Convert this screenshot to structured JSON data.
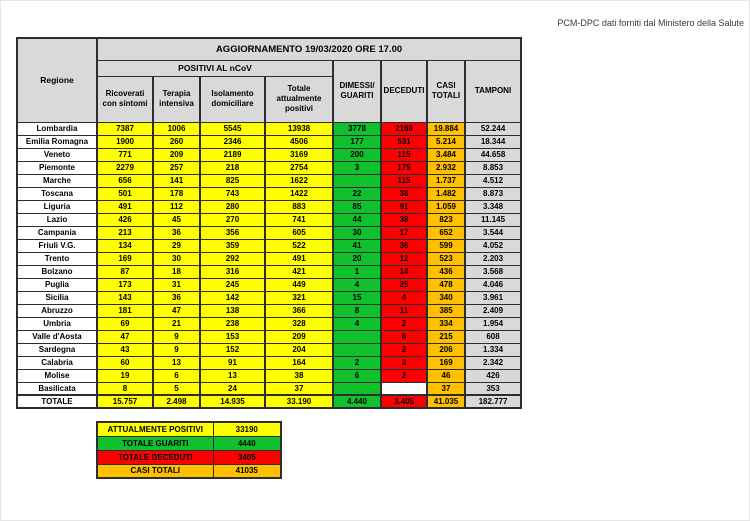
{
  "page": {
    "caption": "PCM-DPC dati forniti dal Ministero della Salute"
  },
  "colors": {
    "yellow": "#FFFF00",
    "green": "#10C02D",
    "red": "#FF0000",
    "orange": "#FFC000",
    "gray": "#D9D9D9",
    "header_gray": "#D9D9D9"
  },
  "table": {
    "title": "AGGIORNAMENTO 19/03/2020 ORE 17.00",
    "group_header": "POSITIVI AL nCoV",
    "columns": {
      "regione": "Regione",
      "ricoverati": "Ricoverati con sintomi",
      "terapia": "Terapia intensiva",
      "isolamento": "Isolamento domiciliare",
      "totale": "Totale attualmente positivi",
      "dimessi": "DIMESSI/ GUARITI",
      "deceduti": "DECEDUTI",
      "casi": "CASI TOTALI",
      "tamponi": "TAMPONI"
    },
    "rows": [
      {
        "regione": "Lombardia",
        "ricoverati": "7387",
        "terapia": "1006",
        "isolamento": "5545",
        "totale": "13938",
        "dimessi": "3778",
        "deceduti": "2168",
        "casi": "19.884",
        "tamponi": "52.244"
      },
      {
        "regione": "Emilia Romagna",
        "ricoverati": "1900",
        "terapia": "260",
        "isolamento": "2346",
        "totale": "4506",
        "dimessi": "177",
        "deceduti": "531",
        "casi": "5.214",
        "tamponi": "18.344"
      },
      {
        "regione": "Veneto",
        "ricoverati": "771",
        "terapia": "209",
        "isolamento": "2189",
        "totale": "3169",
        "dimessi": "200",
        "deceduti": "115",
        "casi": "3.484",
        "tamponi": "44.658"
      },
      {
        "regione": "Piemonte",
        "ricoverati": "2279",
        "terapia": "257",
        "isolamento": "218",
        "totale": "2754",
        "dimessi": "3",
        "deceduti": "175",
        "casi": "2.932",
        "tamponi": "8.853"
      },
      {
        "regione": "Marche",
        "ricoverati": "656",
        "terapia": "141",
        "isolamento": "825",
        "totale": "1622",
        "dimessi": "",
        "deceduti": "115",
        "casi": "1.737",
        "tamponi": "4.512"
      },
      {
        "regione": "Toscana",
        "ricoverati": "501",
        "terapia": "178",
        "isolamento": "743",
        "totale": "1422",
        "dimessi": "22",
        "deceduti": "38",
        "casi": "1.482",
        "tamponi": "8.873"
      },
      {
        "regione": "Liguria",
        "ricoverati": "491",
        "terapia": "112",
        "isolamento": "280",
        "totale": "883",
        "dimessi": "85",
        "deceduti": "91",
        "casi": "1.059",
        "tamponi": "3.348"
      },
      {
        "regione": "Lazio",
        "ricoverati": "426",
        "terapia": "45",
        "isolamento": "270",
        "totale": "741",
        "dimessi": "44",
        "deceduti": "38",
        "casi": "823",
        "tamponi": "11.145"
      },
      {
        "regione": "Campania",
        "ricoverati": "213",
        "terapia": "36",
        "isolamento": "356",
        "totale": "605",
        "dimessi": "30",
        "deceduti": "17",
        "casi": "652",
        "tamponi": "3.544"
      },
      {
        "regione": "Friuli V.G.",
        "ricoverati": "134",
        "terapia": "29",
        "isolamento": "359",
        "totale": "522",
        "dimessi": "41",
        "deceduti": "36",
        "casi": "599",
        "tamponi": "4.052"
      },
      {
        "regione": "Trento",
        "ricoverati": "169",
        "terapia": "30",
        "isolamento": "292",
        "totale": "491",
        "dimessi": "20",
        "deceduti": "12",
        "casi": "523",
        "tamponi": "2.203"
      },
      {
        "regione": "Bolzano",
        "ricoverati": "87",
        "terapia": "18",
        "isolamento": "316",
        "totale": "421",
        "dimessi": "1",
        "deceduti": "14",
        "casi": "436",
        "tamponi": "3.568"
      },
      {
        "regione": "Puglia",
        "ricoverati": "173",
        "terapia": "31",
        "isolamento": "245",
        "totale": "449",
        "dimessi": "4",
        "deceduti": "25",
        "casi": "478",
        "tamponi": "4.046"
      },
      {
        "regione": "Sicilia",
        "ricoverati": "143",
        "terapia": "36",
        "isolamento": "142",
        "totale": "321",
        "dimessi": "15",
        "deceduti": "4",
        "casi": "340",
        "tamponi": "3.961"
      },
      {
        "regione": "Abruzzo",
        "ricoverati": "181",
        "terapia": "47",
        "isolamento": "138",
        "totale": "366",
        "dimessi": "8",
        "deceduti": "11",
        "casi": "385",
        "tamponi": "2.409"
      },
      {
        "regione": "Umbria",
        "ricoverati": "69",
        "terapia": "21",
        "isolamento": "238",
        "totale": "328",
        "dimessi": "4",
        "deceduti": "2",
        "casi": "334",
        "tamponi": "1.954"
      },
      {
        "regione": "Valle d'Aosta",
        "ricoverati": "47",
        "terapia": "9",
        "isolamento": "153",
        "totale": "209",
        "dimessi": "",
        "deceduti": "6",
        "casi": "215",
        "tamponi": "608"
      },
      {
        "regione": "Sardegna",
        "ricoverati": "43",
        "terapia": "9",
        "isolamento": "152",
        "totale": "204",
        "dimessi": "",
        "deceduti": "2",
        "casi": "206",
        "tamponi": "1.334"
      },
      {
        "regione": "Calabria",
        "ricoverati": "60",
        "terapia": "13",
        "isolamento": "91",
        "totale": "164",
        "dimessi": "2",
        "deceduti": "3",
        "casi": "169",
        "tamponi": "2.342"
      },
      {
        "regione": "Molise",
        "ricoverati": "19",
        "terapia": "6",
        "isolamento": "13",
        "totale": "38",
        "dimessi": "6",
        "deceduti": "2",
        "casi": "46",
        "tamponi": "426"
      },
      {
        "regione": "Basilicata",
        "ricoverati": "8",
        "terapia": "5",
        "isolamento": "24",
        "totale": "37",
        "dimessi": "",
        "deceduti": "",
        "casi": "37",
        "tamponi": "353"
      }
    ],
    "totale_row": {
      "regione": "TOTALE",
      "ricoverati": "15.757",
      "terapia": "2.498",
      "isolamento": "14.935",
      "totale": "33.190",
      "dimessi": "4.440",
      "deceduti": "3.405",
      "casi": "41.035",
      "tamponi": "182.777"
    }
  },
  "summary": {
    "rows": [
      {
        "label": "ATTUALMENTE POSITIVI",
        "value": "33190",
        "color": "yellow"
      },
      {
        "label": "TOTALE GUARITI",
        "value": "4440",
        "color": "green"
      },
      {
        "label": "TOTALE DECEDUTI",
        "value": "3405",
        "color": "red"
      },
      {
        "label": "CASI TOTALI",
        "value": "41035",
        "color": "orange"
      }
    ]
  }
}
